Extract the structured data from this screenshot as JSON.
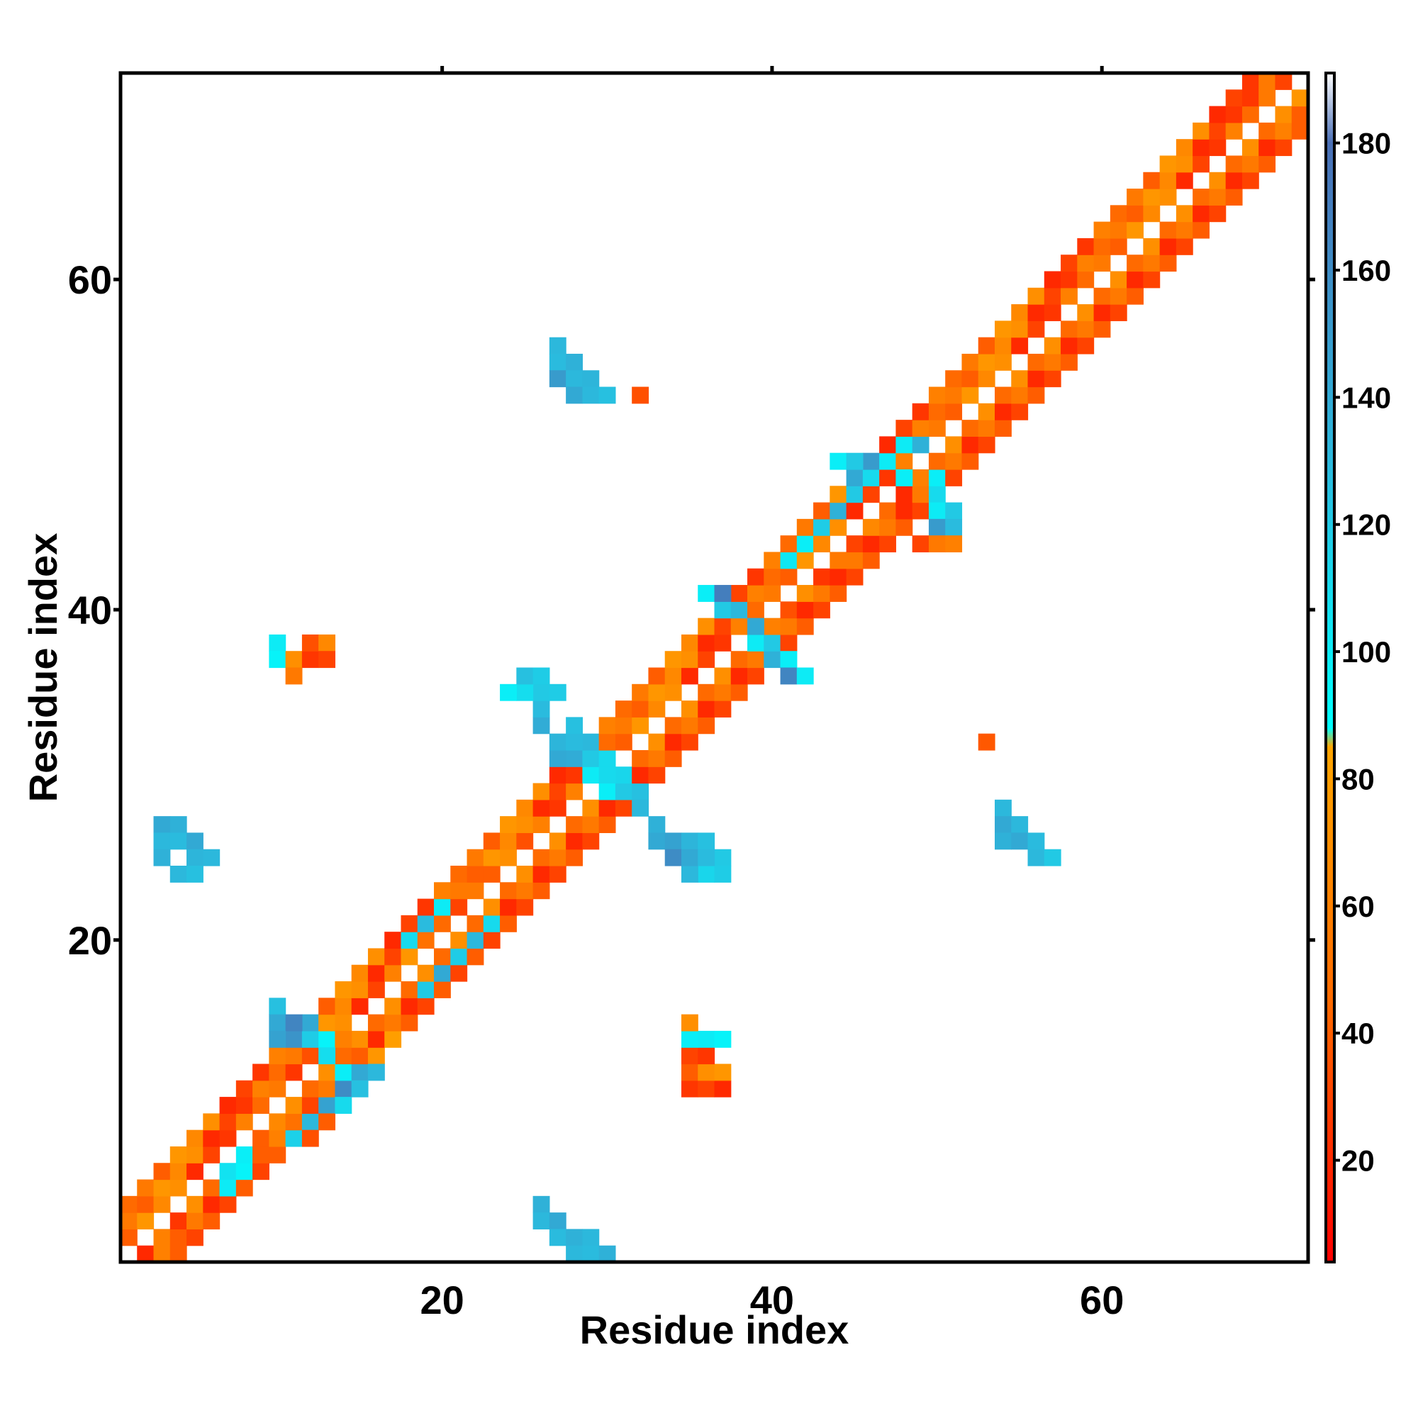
{
  "chart_data": {
    "type": "heatmap",
    "title": "",
    "xlabel": "Residue index",
    "ylabel": "Residue index",
    "xlim": [
      0.5,
      72.5
    ],
    "ylim": [
      0.5,
      72.5
    ],
    "x_ticks": [
      20,
      40,
      60
    ],
    "y_ticks": [
      20,
      40,
      60
    ],
    "x_tick_labels": [
      "20",
      "40",
      "60"
    ],
    "y_tick_labels": [
      "20",
      "40",
      "60"
    ],
    "grid": false,
    "colorbar": {
      "range": [
        4,
        191
      ],
      "ticks": [
        20,
        40,
        60,
        80,
        100,
        120,
        140,
        160,
        180
      ],
      "tick_labels": [
        "20",
        "40",
        "60",
        "80",
        "100",
        "120",
        "140",
        "160",
        "180"
      ],
      "stops": [
        {
          "value": 4,
          "color": "#ff0000"
        },
        {
          "value": 45,
          "color": "#ff6a00"
        },
        {
          "value": 85,
          "color": "#ffa500"
        },
        {
          "value": 88,
          "color": "#00ffff"
        },
        {
          "value": 130,
          "color": "#2cb8dc"
        },
        {
          "value": 180,
          "color": "#4a6fb5"
        },
        {
          "value": 191,
          "color": "#ffffff"
        }
      ]
    },
    "diagonal_band": {
      "offsets": [
        1,
        2,
        3
      ],
      "value_pattern": [
        55,
        25,
        70,
        40,
        60,
        20,
        75,
        45,
        30,
        65
      ]
    },
    "cells": [
      [
        3,
        2,
        60
      ],
      [
        4,
        3,
        25
      ],
      [
        5,
        4,
        70
      ],
      [
        6,
        5,
        45
      ],
      [
        7,
        6,
        105
      ],
      [
        8,
        7,
        98
      ],
      [
        9,
        8,
        40
      ],
      [
        10,
        9,
        65
      ],
      [
        7,
        5,
        100
      ],
      [
        8,
        6,
        95
      ],
      [
        9,
        7,
        40
      ],
      [
        10,
        8,
        60
      ],
      [
        11,
        9,
        50
      ],
      [
        12,
        10,
        30
      ],
      [
        11,
        8,
        115
      ],
      [
        12,
        9,
        130
      ],
      [
        13,
        10,
        145
      ],
      [
        14,
        11,
        160
      ],
      [
        15,
        12,
        140
      ],
      [
        16,
        13,
        128
      ],
      [
        12,
        8,
        35
      ],
      [
        13,
        9,
        40
      ],
      [
        14,
        10,
        110
      ],
      [
        15,
        11,
        125
      ],
      [
        16,
        12,
        130
      ],
      [
        10,
        16,
        125
      ],
      [
        10,
        15,
        140
      ],
      [
        11,
        15,
        165
      ],
      [
        12,
        15,
        140
      ],
      [
        10,
        14,
        145
      ],
      [
        11,
        14,
        155
      ],
      [
        12,
        14,
        118
      ],
      [
        13,
        14,
        95
      ],
      [
        14,
        14,
        60
      ],
      [
        11,
        12,
        25
      ],
      [
        12,
        13,
        35
      ],
      [
        13,
        13,
        108
      ],
      [
        14,
        12,
        98
      ],
      [
        15,
        13,
        40
      ],
      [
        16,
        13,
        75
      ],
      [
        17,
        14,
        80
      ],
      [
        19,
        17,
        120
      ],
      [
        20,
        18,
        140
      ],
      [
        21,
        19,
        118
      ],
      [
        22,
        20,
        130
      ],
      [
        23,
        21,
        110
      ],
      [
        17,
        18,
        60
      ],
      [
        18,
        19,
        75
      ],
      [
        19,
        20,
        50
      ],
      [
        20,
        21,
        45
      ],
      [
        21,
        22,
        30
      ],
      [
        22,
        23,
        55
      ],
      [
        23,
        24,
        40
      ],
      [
        24,
        25,
        70
      ],
      [
        25,
        26,
        35
      ],
      [
        26,
        27,
        60
      ],
      [
        18,
        20,
        110
      ],
      [
        19,
        21,
        128
      ],
      [
        20,
        22,
        100
      ],
      [
        27,
        31,
        140
      ],
      [
        28,
        31,
        138
      ],
      [
        27,
        32,
        132
      ],
      [
        28,
        32,
        128
      ],
      [
        29,
        31,
        120
      ],
      [
        30,
        31,
        110
      ],
      [
        31,
        30,
        112
      ],
      [
        31,
        29,
        120
      ],
      [
        32,
        29,
        125
      ],
      [
        32,
        28,
        130
      ],
      [
        33,
        27,
        135
      ],
      [
        33,
        26,
        140
      ],
      [
        34,
        26,
        145
      ],
      [
        35,
        26,
        132
      ],
      [
        36,
        26,
        125
      ],
      [
        37,
        25,
        120
      ],
      [
        26,
        33,
        138
      ],
      [
        26,
        34,
        128
      ],
      [
        26,
        35,
        120
      ],
      [
        25,
        35,
        108
      ],
      [
        24,
        35,
        98
      ],
      [
        27,
        35,
        118
      ],
      [
        25,
        36,
        125
      ],
      [
        26,
        36,
        118
      ],
      [
        28,
        33,
        125
      ],
      [
        29,
        32,
        130
      ],
      [
        36,
        24,
        112
      ],
      [
        37,
        24,
        118
      ],
      [
        35,
        24,
        130
      ],
      [
        34,
        25,
        160
      ],
      [
        35,
        25,
        140
      ],
      [
        36,
        25,
        128
      ],
      [
        29,
        30,
        100
      ],
      [
        30,
        29,
        98
      ],
      [
        30,
        30,
        110
      ],
      [
        37,
        40,
        120
      ],
      [
        38,
        40,
        130
      ],
      [
        39,
        39,
        140
      ],
      [
        40,
        38,
        120
      ],
      [
        40,
        37,
        135
      ],
      [
        41,
        37,
        98
      ],
      [
        41,
        36,
        165
      ],
      [
        42,
        36,
        100
      ],
      [
        36,
        41,
        98
      ],
      [
        37,
        41,
        170
      ],
      [
        39,
        38,
        100
      ],
      [
        40,
        39,
        60
      ],
      [
        41,
        40,
        35
      ],
      [
        42,
        41,
        70
      ],
      [
        43,
        42,
        25
      ],
      [
        44,
        43,
        55
      ],
      [
        45,
        44,
        30
      ],
      [
        46,
        45,
        65
      ],
      [
        47,
        46,
        45
      ],
      [
        48,
        47,
        20
      ],
      [
        49,
        48,
        60
      ],
      [
        41,
        43,
        102
      ],
      [
        42,
        44,
        98
      ],
      [
        43,
        45,
        118
      ],
      [
        44,
        46,
        135
      ],
      [
        45,
        47,
        120
      ],
      [
        46,
        48,
        110
      ],
      [
        47,
        49,
        100
      ],
      [
        48,
        50,
        100
      ],
      [
        49,
        50,
        135
      ],
      [
        45,
        48,
        140
      ],
      [
        46,
        49,
        125
      ],
      [
        50,
        46,
        100
      ],
      [
        50,
        47,
        110
      ],
      [
        51,
        46,
        120
      ],
      [
        50,
        45,
        150
      ],
      [
        51,
        45,
        128
      ],
      [
        49,
        44,
        30
      ],
      [
        50,
        44,
        55
      ],
      [
        51,
        44,
        60
      ],
      [
        44,
        49,
        98
      ],
      [
        45,
        49,
        120
      ],
      [
        46,
        49,
        150
      ],
      [
        47,
        49,
        100
      ],
      [
        48,
        48,
        98
      ],
      [
        50,
        48,
        98
      ],
      [
        3,
        1,
        60
      ],
      [
        2,
        1,
        20
      ],
      [
        4,
        2,
        40
      ],
      [
        10,
        38,
        100
      ],
      [
        10,
        37,
        95
      ],
      [
        11,
        37,
        70
      ],
      [
        12,
        37,
        25
      ],
      [
        12,
        38,
        35
      ],
      [
        13,
        38,
        65
      ],
      [
        13,
        37,
        30
      ],
      [
        11,
        36,
        55
      ],
      [
        35,
        11,
        25
      ],
      [
        36,
        11,
        30
      ],
      [
        37,
        11,
        20
      ],
      [
        35,
        12,
        40
      ],
      [
        36,
        12,
        70
      ],
      [
        37,
        12,
        75
      ],
      [
        35,
        13,
        30
      ],
      [
        36,
        13,
        25
      ],
      [
        35,
        14,
        98
      ],
      [
        36,
        14,
        100
      ],
      [
        37,
        14,
        95
      ],
      [
        35,
        15,
        70
      ],
      [
        27,
        56,
        130
      ],
      [
        27,
        55,
        128
      ],
      [
        28,
        55,
        135
      ],
      [
        27,
        54,
        150
      ],
      [
        28,
        54,
        130
      ],
      [
        29,
        54,
        132
      ],
      [
        28,
        53,
        140
      ],
      [
        29,
        53,
        130
      ],
      [
        30,
        53,
        125
      ],
      [
        32,
        53,
        35
      ],
      [
        53,
        32,
        38
      ],
      [
        54,
        28,
        130
      ],
      [
        54,
        27,
        140
      ],
      [
        55,
        27,
        130
      ],
      [
        54,
        26,
        135
      ],
      [
        55,
        26,
        140
      ],
      [
        56,
        26,
        128
      ],
      [
        56,
        25,
        130
      ],
      [
        57,
        25,
        120
      ],
      [
        3,
        27,
        140
      ],
      [
        4,
        27,
        135
      ],
      [
        3,
        26,
        130
      ],
      [
        4,
        26,
        128
      ],
      [
        5,
        26,
        140
      ],
      [
        5,
        25,
        132
      ],
      [
        6,
        25,
        130
      ],
      [
        3,
        25,
        135
      ],
      [
        4,
        24,
        130
      ],
      [
        5,
        24,
        125
      ],
      [
        26,
        4,
        135
      ],
      [
        26,
        3,
        130
      ],
      [
        27,
        3,
        140
      ],
      [
        27,
        2,
        128
      ],
      [
        28,
        2,
        135
      ],
      [
        29,
        2,
        130
      ],
      [
        28,
        1,
        130
      ],
      [
        29,
        1,
        128
      ],
      [
        30,
        1,
        135
      ],
      [
        71,
        72,
        30
      ],
      [
        72,
        71,
        75
      ],
      [
        72,
        70,
        40
      ],
      [
        70,
        72,
        55
      ],
      [
        69,
        71,
        25
      ],
      [
        71,
        69,
        60
      ]
    ]
  }
}
